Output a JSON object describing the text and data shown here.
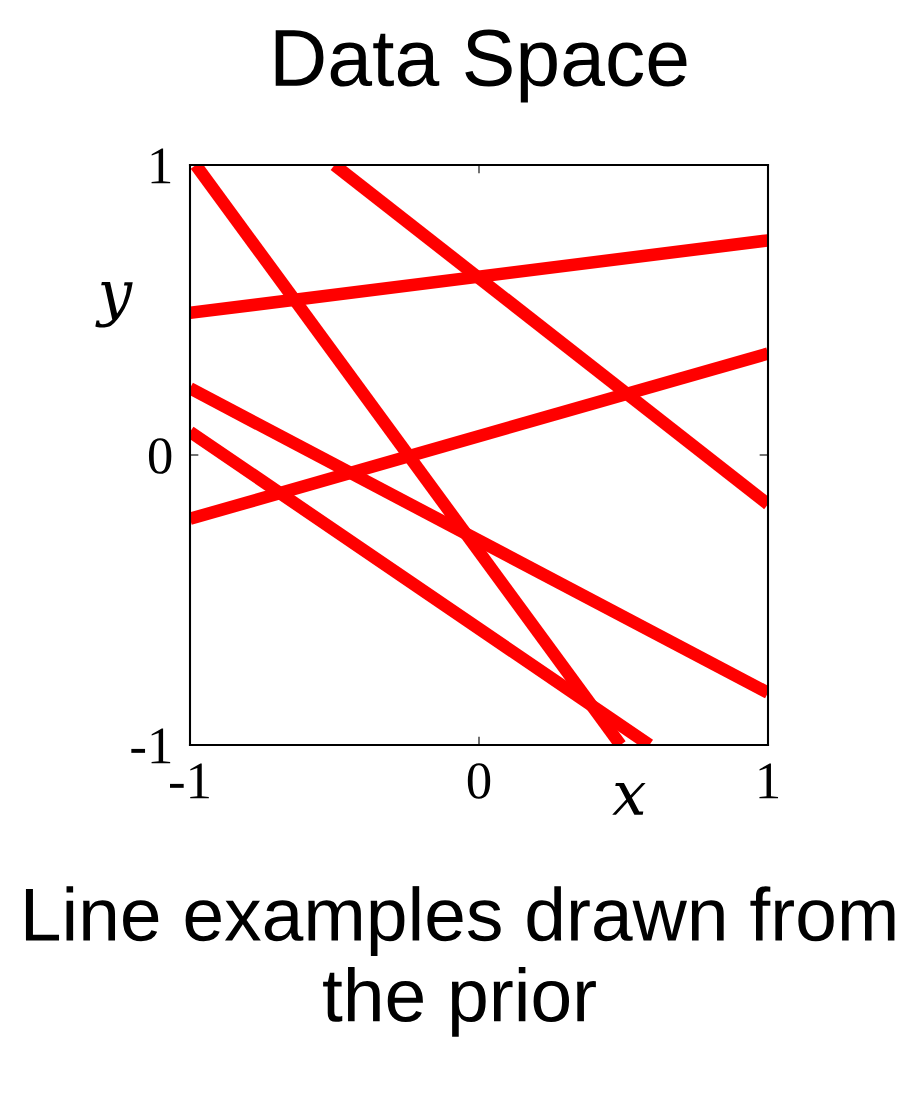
{
  "chart_data": {
    "type": "line",
    "title": "Data Space",
    "xlabel": "x",
    "ylabel": "y",
    "annotations": [
      "Line examples drawn from the prior"
    ],
    "xlim": [
      -1,
      1
    ],
    "ylim": [
      -1,
      1
    ],
    "xticks": [
      -1,
      0,
      1
    ],
    "yticks": [
      -1,
      0,
      1
    ],
    "grid": false,
    "legend": false,
    "marker": "none",
    "line_style": "solid",
    "series": [
      {
        "color": "#ff0000",
        "x": [
          -0.98,
          0.49
        ],
        "values": [
          1,
          -1
        ]
      },
      {
        "color": "#ff0000",
        "x": [
          -0.5,
          1
        ],
        "values": [
          1,
          -0.17
        ]
      },
      {
        "color": "#ff0000",
        "x": [
          -1,
          1
        ],
        "values": [
          0.49,
          0.74
        ]
      },
      {
        "color": "#ff0000",
        "x": [
          -1,
          1
        ],
        "values": [
          -0.22,
          0.35
        ]
      },
      {
        "color": "#ff0000",
        "x": [
          -1,
          1
        ],
        "values": [
          0.23,
          -0.82
        ]
      },
      {
        "color": "#ff0000",
        "x": [
          -1,
          0.59
        ],
        "values": [
          0.08,
          -1
        ]
      }
    ]
  }
}
